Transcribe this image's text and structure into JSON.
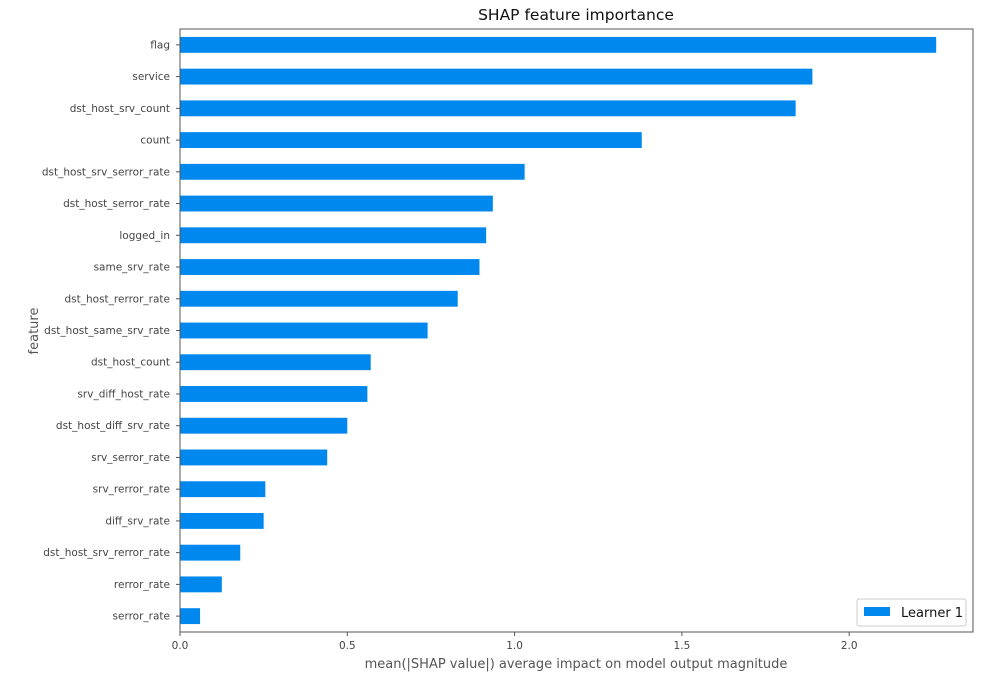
{
  "chart_data": {
    "type": "bar",
    "orientation": "horizontal",
    "title": "SHAP feature importance",
    "xlabel": "mean(|SHAP value|) average impact on model output magnitude",
    "ylabel": "feature",
    "xlim": [
      0,
      2.37
    ],
    "xticks": [
      0.0,
      0.5,
      1.0,
      1.5,
      2.0
    ],
    "xtick_labels": [
      "0.0",
      "0.5",
      "1.0",
      "1.5",
      "2.0"
    ],
    "categories": [
      "flag",
      "service",
      "dst_host_srv_count",
      "count",
      "dst_host_srv_serror_rate",
      "dst_host_serror_rate",
      "logged_in",
      "same_srv_rate",
      "dst_host_rerror_rate",
      "dst_host_same_srv_rate",
      "dst_host_count",
      "srv_diff_host_rate",
      "dst_host_diff_srv_rate",
      "srv_serror_rate",
      "srv_rerror_rate",
      "diff_srv_rate",
      "dst_host_srv_rerror_rate",
      "rerror_rate",
      "serror_rate"
    ],
    "series": [
      {
        "name": "Learner 1",
        "color": "#0088ee",
        "values": [
          2.26,
          1.89,
          1.84,
          1.38,
          1.03,
          0.935,
          0.915,
          0.895,
          0.83,
          0.74,
          0.57,
          0.56,
          0.5,
          0.44,
          0.255,
          0.25,
          0.18,
          0.125,
          0.06
        ]
      }
    ],
    "legend": {
      "position": "bottom-right"
    },
    "grid": false
  }
}
